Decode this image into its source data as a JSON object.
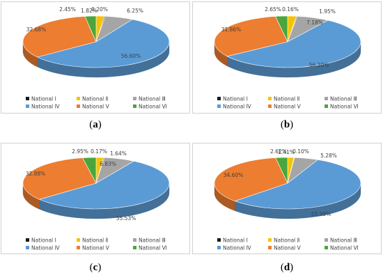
{
  "colors": {
    "National Ⅰ": "#1a1a1a",
    "National Ⅱ": "#f5c400",
    "National Ⅲ": "#a5a5a5",
    "National Ⅳ": "#5b9bd5",
    "National Ⅴ": "#ed7d31",
    "National Ⅵ": "#4aa63c"
  },
  "chart_data": [
    {
      "type": "pie",
      "caption": "a",
      "categories": [
        "National Ⅰ",
        "National Ⅱ",
        "National Ⅲ",
        "National Ⅳ",
        "National Ⅴ",
        "National Ⅵ"
      ],
      "values": [
        0.2,
        1.82,
        6.25,
        56.6,
        32.68,
        2.45
      ],
      "value_labels": [
        "0.20%",
        "1.82%",
        "6.25%",
        "56.60%",
        "32.68%",
        "2.45%"
      ],
      "legend": "bottom"
    },
    {
      "type": "pie",
      "caption": "b",
      "categories": [
        "National Ⅰ",
        "National Ⅱ",
        "National Ⅲ",
        "National Ⅳ",
        "National Ⅴ",
        "National Ⅵ"
      ],
      "values": [
        0.16,
        1.95,
        7.18,
        56.2,
        31.86,
        2.65
      ],
      "value_labels": [
        "0.16%",
        "1.95%",
        "7.18%",
        "56.20%",
        "31.86%",
        "2.65%"
      ],
      "legend": "bottom"
    },
    {
      "type": "pie",
      "caption": "c",
      "categories": [
        "National Ⅰ",
        "National Ⅱ",
        "National Ⅲ",
        "National Ⅳ",
        "National Ⅴ",
        "National Ⅵ"
      ],
      "values": [
        0.17,
        1.64,
        6.83,
        55.53,
        32.88,
        2.95
      ],
      "value_labels": [
        "0.17%",
        "1.64%",
        "6.83%",
        "55.53%",
        "32.88%",
        "2.95%"
      ],
      "legend": "bottom"
    },
    {
      "type": "pie",
      "caption": "d",
      "categories": [
        "National Ⅰ",
        "National Ⅱ",
        "National Ⅲ",
        "National Ⅳ",
        "National Ⅴ",
        "National Ⅵ"
      ],
      "values": [
        0.1,
        1.41,
        5.28,
        55.99,
        34.6,
        2.62
      ],
      "value_labels": [
        "0.10%",
        "1.41%",
        "5.28%",
        "55.99%",
        "34.60%",
        "2.62%"
      ],
      "legend": "bottom"
    }
  ]
}
